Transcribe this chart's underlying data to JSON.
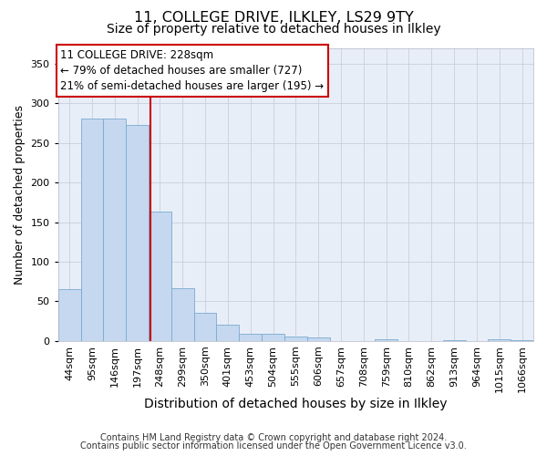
{
  "title1": "11, COLLEGE DRIVE, ILKLEY, LS29 9TY",
  "title2": "Size of property relative to detached houses in Ilkley",
  "xlabel": "Distribution of detached houses by size in Ilkley",
  "ylabel": "Number of detached properties",
  "categories": [
    "44sqm",
    "95sqm",
    "146sqm",
    "197sqm",
    "248sqm",
    "299sqm",
    "350sqm",
    "401sqm",
    "453sqm",
    "504sqm",
    "555sqm",
    "606sqm",
    "657sqm",
    "708sqm",
    "759sqm",
    "810sqm",
    "862sqm",
    "913sqm",
    "964sqm",
    "1015sqm",
    "1066sqm"
  ],
  "values": [
    65,
    281,
    281,
    273,
    163,
    67,
    35,
    20,
    9,
    9,
    5,
    4,
    0,
    0,
    2,
    0,
    0,
    1,
    0,
    2,
    1
  ],
  "bar_color": "#c5d8f0",
  "bar_edge_color": "#7aaad0",
  "vline_color": "#cc0000",
  "vline_x": 3.58,
  "annotation_text": "11 COLLEGE DRIVE: 228sqm\n← 79% of detached houses are smaller (727)\n21% of semi-detached houses are larger (195) →",
  "annotation_box_color": "#ffffff",
  "annotation_box_edge": "#cc0000",
  "footer1": "Contains HM Land Registry data © Crown copyright and database right 2024.",
  "footer2": "Contains public sector information licensed under the Open Government Licence v3.0.",
  "ylim": [
    0,
    370
  ],
  "yticks": [
    0,
    50,
    100,
    150,
    200,
    250,
    300,
    350
  ],
  "title1_fontsize": 11.5,
  "title2_fontsize": 10,
  "xlabel_fontsize": 10,
  "ylabel_fontsize": 9,
  "tick_fontsize": 8,
  "footer_fontsize": 7,
  "annotation_fontsize": 8.5,
  "background_color": "#e8eef8"
}
